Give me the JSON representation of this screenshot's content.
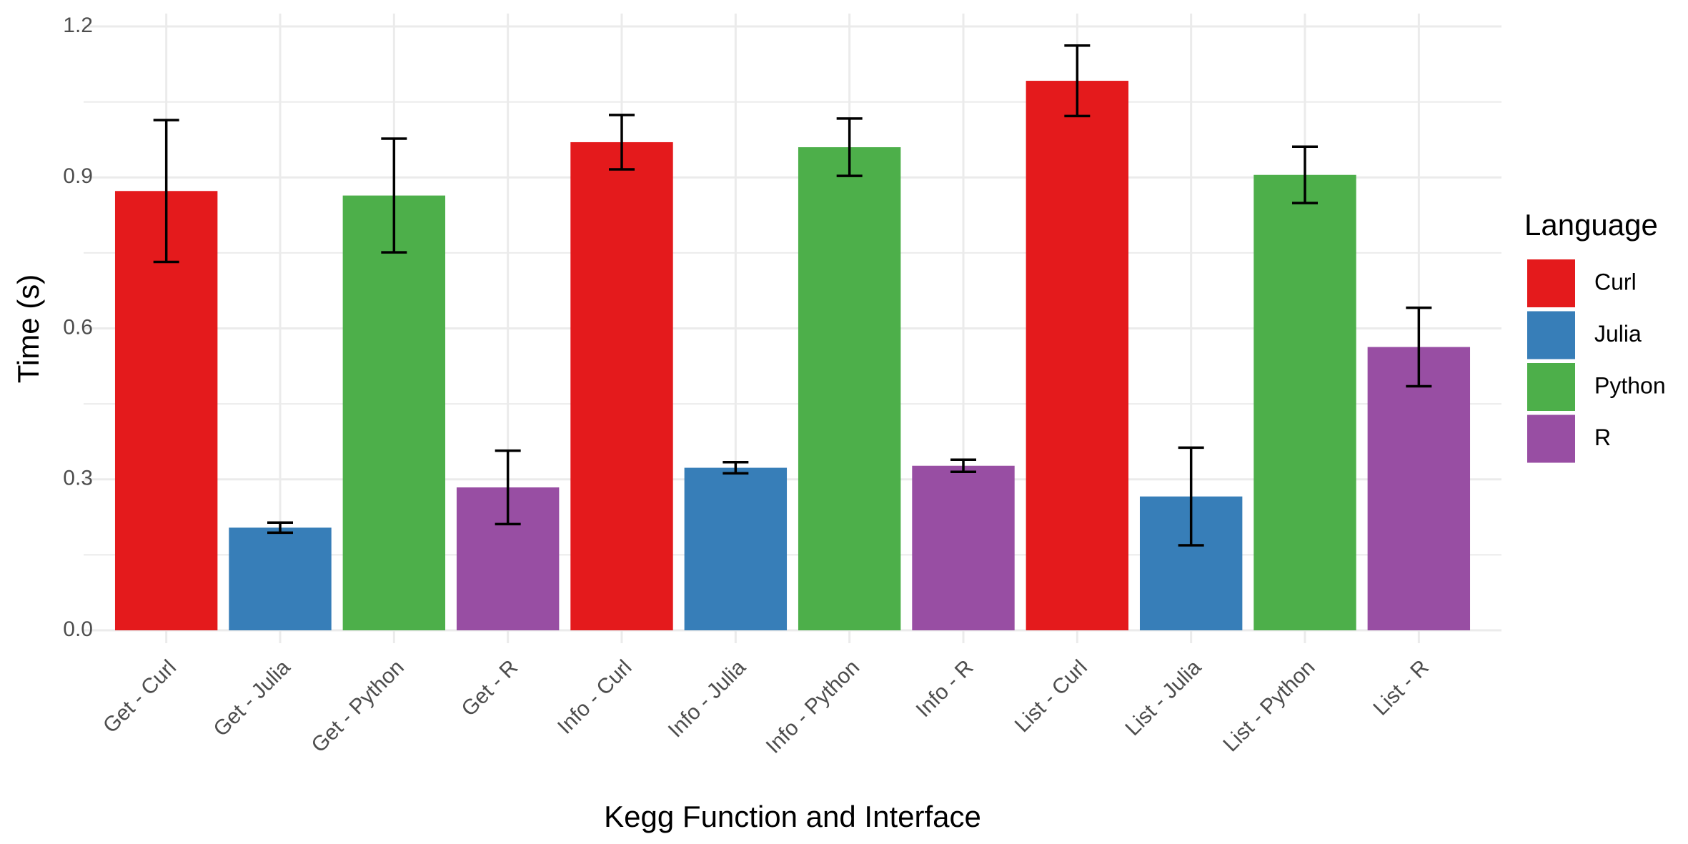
{
  "chart_data": {
    "type": "bar",
    "x_label": "Kegg Function and Interface",
    "y_label": "Time (s)",
    "legend_title": "Language",
    "legend_position": "right",
    "grid": true,
    "categories": [
      "Get - Curl",
      "Get - Julia",
      "Get - Python",
      "Get - R",
      "Info - Curl",
      "Info - Julia",
      "Info - Python",
      "Info - R",
      "List - Curl",
      "List - Julia",
      "List - Python",
      "List - R"
    ],
    "series": [
      {
        "name": "Curl",
        "color": "#e41a1c",
        "values": [
          0.873,
          null,
          null,
          null,
          0.97,
          null,
          null,
          null,
          1.092,
          null,
          null,
          null
        ],
        "errors": [
          0.141,
          null,
          null,
          null,
          0.054,
          null,
          null,
          null,
          0.07,
          null,
          null,
          null
        ]
      },
      {
        "name": "Julia",
        "color": "#377eb8",
        "values": [
          null,
          0.204,
          null,
          null,
          null,
          0.323,
          null,
          null,
          null,
          0.266,
          null,
          null
        ],
        "errors": [
          null,
          0.01,
          null,
          null,
          null,
          0.011,
          null,
          null,
          null,
          0.097,
          null,
          null
        ]
      },
      {
        "name": "Python",
        "color": "#4daf4a",
        "values": [
          null,
          null,
          0.864,
          null,
          null,
          null,
          0.96,
          null,
          null,
          null,
          0.905,
          null
        ],
        "errors": [
          null,
          null,
          0.113,
          null,
          null,
          null,
          0.057,
          null,
          null,
          null,
          0.056,
          null
        ]
      },
      {
        "name": "R",
        "color": "#984ea3",
        "values": [
          null,
          null,
          null,
          0.284,
          null,
          null,
          null,
          0.327,
          null,
          null,
          null,
          0.563
        ],
        "errors": [
          null,
          null,
          null,
          0.073,
          null,
          null,
          null,
          0.012,
          null,
          null,
          null,
          0.078
        ]
      }
    ],
    "ylim": [
      0,
      1.2
    ],
    "yticks": [
      {
        "value": 0,
        "label": "0.0"
      },
      0.3,
      0.6,
      0.9,
      1.2
    ],
    "minor_yticks": [
      0.15,
      0.45,
      0.75,
      1.05
    ]
  }
}
